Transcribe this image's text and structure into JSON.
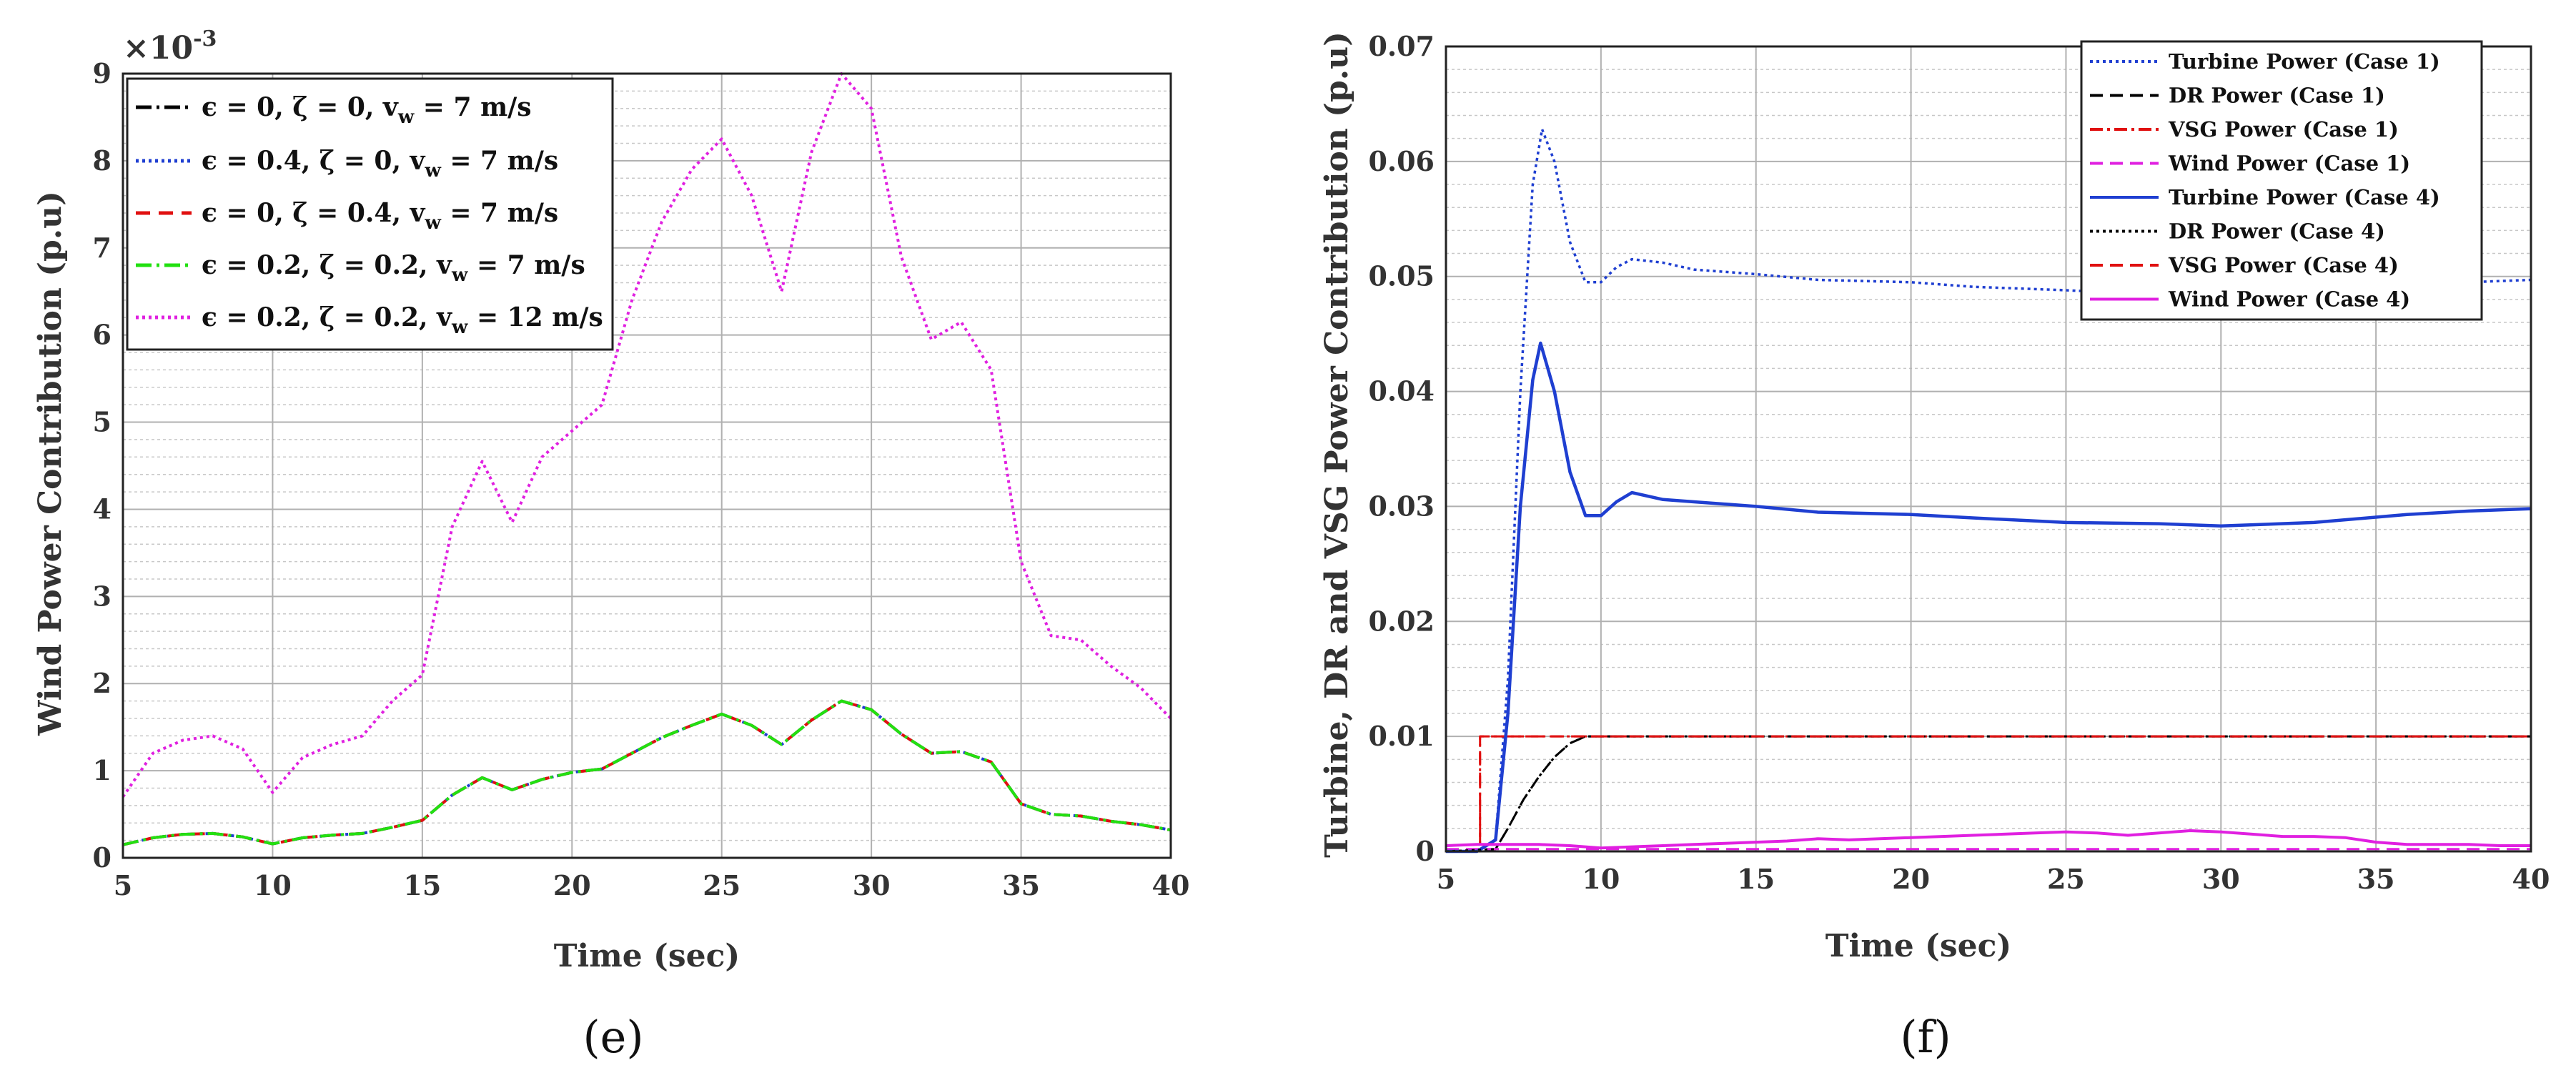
{
  "chart_data": [
    {
      "type": "line",
      "panel_label": "(e)",
      "xlabel": "Time (sec)",
      "ylabel": "Wind Power Contribution (p.u)",
      "y_multiplier_label": "×10",
      "y_multiplier_exp": "-3",
      "xlim": [
        5,
        40
      ],
      "ylim": [
        0,
        9
      ],
      "xticks": [
        "5",
        "10",
        "15",
        "20",
        "25",
        "30",
        "35",
        "40"
      ],
      "yticks": [
        "0",
        "1",
        "2",
        "3",
        "4",
        "5",
        "6",
        "7",
        "8",
        "9"
      ],
      "grid": true,
      "minor_grid": true,
      "legend_position": "top-left",
      "x": [
        5,
        6,
        7,
        8,
        9,
        10,
        11,
        12,
        13,
        14,
        15,
        16,
        17,
        18,
        19,
        20,
        21,
        22,
        23,
        24,
        25,
        26,
        27,
        28,
        29,
        30,
        31,
        32,
        33,
        34,
        35,
        36,
        37,
        38,
        39,
        40
      ],
      "series": [
        {
          "name": "ϵ = 0, ζ = 0, v_w = 7 m/s",
          "legend": {
            "pre": "ϵ = 0, ζ = 0, v",
            "sub": "w",
            "post": " = 7 m/s"
          },
          "color": "#000000",
          "dash": "22,7,4,7",
          "values": [
            0.15,
            0.23,
            0.27,
            0.28,
            0.24,
            0.16,
            0.23,
            0.26,
            0.28,
            0.35,
            0.43,
            0.72,
            0.92,
            0.78,
            0.9,
            0.98,
            1.02,
            1.2,
            1.38,
            1.52,
            1.65,
            1.52,
            1.3,
            1.58,
            1.8,
            1.7,
            1.42,
            1.2,
            1.22,
            1.1,
            0.62,
            0.5,
            0.48,
            0.42,
            0.38,
            0.32
          ]
        },
        {
          "name": "ϵ = 0.4, ζ = 0, v_w = 7 m/s",
          "legend": {
            "pre": "ϵ = 0.4, ζ = 0, v",
            "sub": "w",
            "post": " = 7 m/s"
          },
          "color": "#1f3fd1",
          "dash": "4,5",
          "values": [
            0.15,
            0.23,
            0.27,
            0.28,
            0.24,
            0.16,
            0.23,
            0.26,
            0.28,
            0.35,
            0.43,
            0.72,
            0.92,
            0.78,
            0.9,
            0.98,
            1.02,
            1.2,
            1.38,
            1.52,
            1.65,
            1.52,
            1.3,
            1.58,
            1.8,
            1.7,
            1.42,
            1.2,
            1.22,
            1.1,
            0.62,
            0.5,
            0.48,
            0.42,
            0.38,
            0.32
          ]
        },
        {
          "name": "ϵ = 0, ζ = 0.4, v_w = 7 m/s",
          "legend": {
            "pre": "ϵ = 0, ζ = 0.4, v",
            "sub": "w",
            "post": " = 7 m/s"
          },
          "color": "#e01010",
          "dash": "20,12",
          "values": [
            0.15,
            0.23,
            0.27,
            0.28,
            0.24,
            0.16,
            0.23,
            0.26,
            0.28,
            0.35,
            0.43,
            0.72,
            0.92,
            0.78,
            0.9,
            0.98,
            1.02,
            1.2,
            1.38,
            1.52,
            1.65,
            1.52,
            1.3,
            1.58,
            1.8,
            1.7,
            1.42,
            1.2,
            1.22,
            1.1,
            0.62,
            0.5,
            0.48,
            0.42,
            0.38,
            0.32
          ]
        },
        {
          "name": "ϵ = 0.2, ζ = 0.2, v_w = 7 m/s",
          "legend": {
            "pre": "ϵ = 0.2, ζ = 0.2, v",
            "sub": "w",
            "post": " = 7 m/s"
          },
          "color": "#22e010",
          "dash": "22,7,4,7",
          "values": [
            0.15,
            0.23,
            0.27,
            0.28,
            0.24,
            0.16,
            0.23,
            0.26,
            0.28,
            0.35,
            0.43,
            0.72,
            0.92,
            0.78,
            0.9,
            0.98,
            1.02,
            1.2,
            1.38,
            1.52,
            1.65,
            1.52,
            1.3,
            1.58,
            1.8,
            1.7,
            1.42,
            1.2,
            1.22,
            1.1,
            0.62,
            0.5,
            0.48,
            0.42,
            0.38,
            0.32
          ]
        },
        {
          "name": "ϵ = 0.2, ζ = 0.2, v_w = 12 m/s",
          "legend": {
            "pre": "ϵ = 0.2, ζ = 0.2, v",
            "sub": "w",
            "post": " = 12 m/s"
          },
          "color": "#e020e0",
          "dash": "4,5",
          "values": [
            0.7,
            1.2,
            1.35,
            1.4,
            1.25,
            0.75,
            1.15,
            1.3,
            1.4,
            1.8,
            2.1,
            3.8,
            4.55,
            3.85,
            4.6,
            4.9,
            5.2,
            6.4,
            7.3,
            7.9,
            8.25,
            7.6,
            6.5,
            8.1,
            9.0,
            8.6,
            6.9,
            5.95,
            6.15,
            5.6,
            3.4,
            2.55,
            2.5,
            2.2,
            1.95,
            1.6
          ]
        }
      ]
    },
    {
      "type": "line",
      "panel_label": "(f)",
      "xlabel": "Time (sec)",
      "ylabel": "Turbine, DR and VSG Power Contribution (p.u)",
      "xlim": [
        5,
        40
      ],
      "ylim": [
        0,
        0.07
      ],
      "xticks": [
        "5",
        "10",
        "15",
        "20",
        "25",
        "30",
        "35",
        "40"
      ],
      "yticks": [
        "0",
        "0.01",
        "0.02",
        "0.03",
        "0.04",
        "0.05",
        "0.06",
        "0.07"
      ],
      "grid": true,
      "minor_grid": true,
      "legend_position": "top-right",
      "series": [
        {
          "name": "Turbine Power (Case 1)",
          "color": "#1f3fd1",
          "dash": "4,5",
          "width": 3.5,
          "x": [
            5,
            6,
            6.6,
            7.0,
            7.4,
            7.8,
            8.1,
            8.5,
            9.0,
            9.5,
            10,
            10.5,
            11,
            12,
            13,
            15,
            17,
            20,
            22,
            25,
            28,
            30,
            33,
            36,
            38,
            40
          ],
          "y": [
            0,
            0,
            0.001,
            0.015,
            0.04,
            0.058,
            0.0628,
            0.06,
            0.053,
            0.0495,
            0.0495,
            0.0508,
            0.0515,
            0.0512,
            0.0506,
            0.0502,
            0.0497,
            0.0495,
            0.0491,
            0.0488,
            0.0484,
            0.0483,
            0.0487,
            0.0493,
            0.0495,
            0.0497
          ]
        },
        {
          "name": "DR Power (Case 1)",
          "color": "#000000",
          "dash": "18,10",
          "width": 3,
          "x": [
            5,
            6.6,
            7.0,
            7.5,
            8.0,
            8.5,
            9.0,
            9.5,
            40
          ],
          "y": [
            0,
            0.0002,
            0.002,
            0.0045,
            0.0065,
            0.0082,
            0.0094,
            0.01,
            0.01
          ]
        },
        {
          "name": "VSG Power (Case 1)",
          "color": "#e01010",
          "dash": "18,6,4,6",
          "width": 3,
          "x": [
            5,
            6.1,
            6.1,
            40
          ],
          "y": [
            0,
            0,
            0.01,
            0.01
          ]
        },
        {
          "name": "Wind Power (Case 1)",
          "color": "#e020e0",
          "dash": "18,10",
          "width": 3,
          "x": [
            5,
            40
          ],
          "y": [
            0.0002,
            0.0002
          ]
        },
        {
          "name": "Turbine Power (Case 4)",
          "color": "#1f3fd1",
          "dash": "",
          "width": 4.5,
          "x": [
            5,
            6,
            6.6,
            7.0,
            7.4,
            7.8,
            8.05,
            8.5,
            9.0,
            9.5,
            10,
            10.5,
            11,
            12,
            13,
            15,
            17,
            20,
            22,
            25,
            28,
            30,
            33,
            36,
            38,
            40
          ],
          "y": [
            0,
            0,
            0.001,
            0.012,
            0.03,
            0.041,
            0.0442,
            0.04,
            0.033,
            0.0292,
            0.0292,
            0.0304,
            0.0312,
            0.0306,
            0.0304,
            0.03,
            0.0295,
            0.0293,
            0.029,
            0.0286,
            0.0285,
            0.0283,
            0.0286,
            0.0293,
            0.0296,
            0.0298
          ]
        },
        {
          "name": "DR Power (Case 4)",
          "color": "#000000",
          "dash": "4,5",
          "width": 3,
          "x": [
            5,
            6.6,
            7.0,
            7.5,
            8.0,
            8.5,
            9.0,
            9.5,
            40
          ],
          "y": [
            0,
            0.0002,
            0.002,
            0.0045,
            0.0065,
            0.0082,
            0.0094,
            0.01,
            0.01
          ]
        },
        {
          "name": "VSG Power (Case 4)",
          "color": "#e01010",
          "dash": "18,10",
          "width": 3,
          "x": [
            5,
            6.1,
            6.1,
            40
          ],
          "y": [
            0,
            0,
            0.01,
            0.01
          ]
        },
        {
          "name": "Wind Power (Case 4)",
          "color": "#e020e0",
          "dash": "",
          "width": 4,
          "x": [
            5,
            6,
            7,
            8,
            9,
            10,
            11,
            12,
            13,
            14,
            15,
            16,
            17,
            18,
            19,
            20,
            21,
            22,
            23,
            24,
            25,
            26,
            27,
            28,
            29,
            30,
            31,
            32,
            33,
            34,
            35,
            36,
            37,
            38,
            39,
            40
          ],
          "y": [
            0.0005,
            0.0006,
            0.0006,
            0.0006,
            0.0005,
            0.0003,
            0.0004,
            0.0005,
            0.0006,
            0.0007,
            0.0008,
            0.0009,
            0.0011,
            0.001,
            0.0011,
            0.0012,
            0.0013,
            0.0014,
            0.0015,
            0.0016,
            0.0017,
            0.0016,
            0.0014,
            0.0016,
            0.0018,
            0.0017,
            0.0015,
            0.0013,
            0.0013,
            0.0012,
            0.0008,
            0.0006,
            0.0006,
            0.0006,
            0.0005,
            0.0005
          ]
        }
      ]
    }
  ]
}
